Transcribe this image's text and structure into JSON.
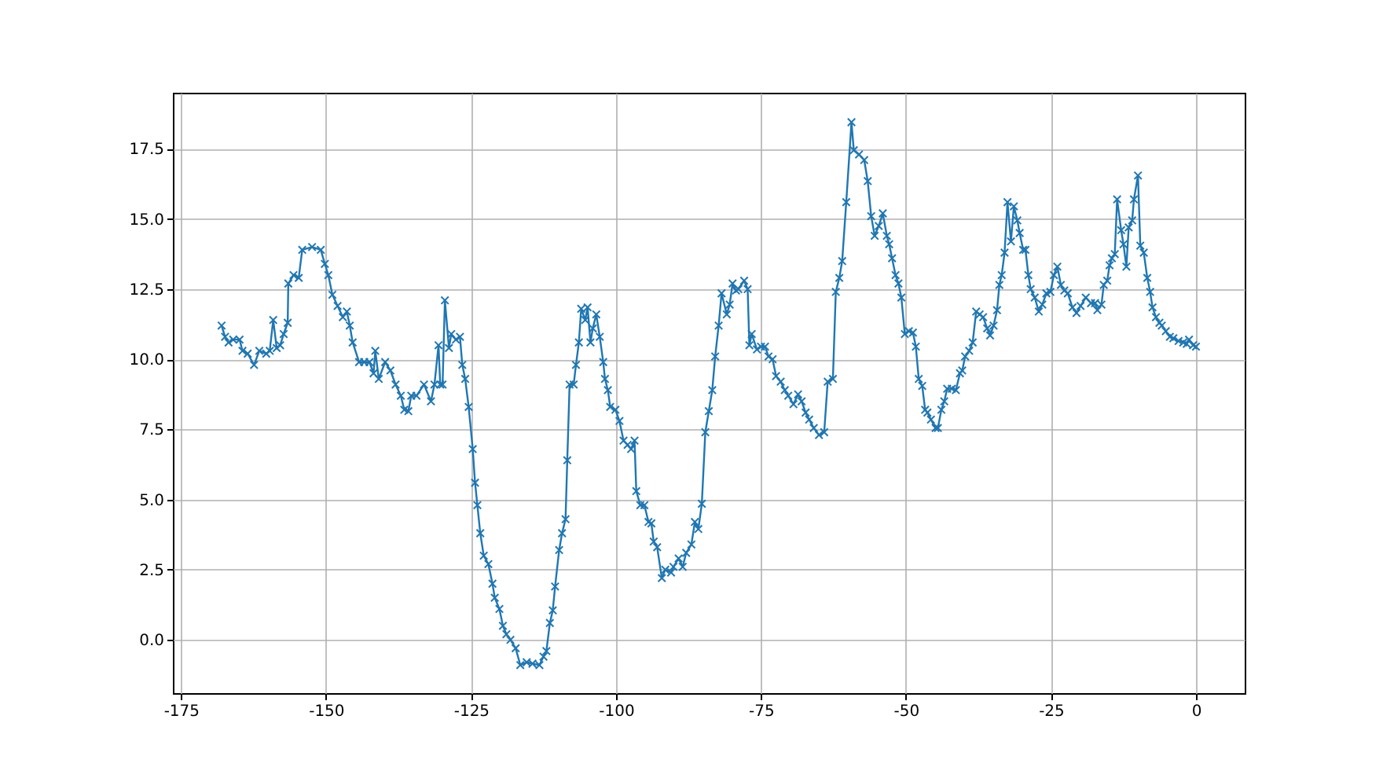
{
  "chart_data": {
    "type": "line",
    "color": "#1f77b4",
    "marker": "cross",
    "line_style": "solid",
    "grid": true,
    "x": [
      -168.0,
      -167.4,
      -166.8,
      -166.0,
      -164.9,
      -164.4,
      -163.5,
      -162.4,
      -161.5,
      -160.3,
      -159.7,
      -159.1,
      -158.5,
      -157.9,
      -157.3,
      -156.6,
      -156.5,
      -155.6,
      -154.7,
      -154.1,
      -152.4,
      -150.9,
      -150.2,
      -149.6,
      -148.9,
      -148.0,
      -147.1,
      -146.4,
      -145.9,
      -145.4,
      -144.3,
      -143.4,
      -142.5,
      -141.8,
      -141.5,
      -140.9,
      -139.8,
      -138.9,
      -138.0,
      -137.1,
      -136.5,
      -135.8,
      -135.3,
      -134.4,
      -133.1,
      -131.9,
      -131.3,
      -130.6,
      -130.3,
      -129.9,
      -129.5,
      -128.8,
      -128.4,
      -127.6,
      -126.9,
      -126.5,
      -126.0,
      -125.4,
      -124.7,
      -124.3,
      -123.9,
      -123.4,
      -122.8,
      -122.0,
      -121.3,
      -120.9,
      -120.1,
      -119.5,
      -118.9,
      -118.2,
      -117.3,
      -116.5,
      -115.4,
      -114.4,
      -113.2,
      -112.5,
      -112.0,
      -111.4,
      -110.9,
      -110.5,
      -109.8,
      -109.3,
      -108.7,
      -108.4,
      -108.0,
      -107.3,
      -106.9,
      -106.4,
      -106.0,
      -105.3,
      -104.9,
      -104.4,
      -104.0,
      -103.4,
      -102.8,
      -102.2,
      -101.9,
      -101.4,
      -101.0,
      -100.1,
      -99.4,
      -98.7,
      -98.0,
      -97.4,
      -96.8,
      -96.5,
      -95.8,
      -95.1,
      -94.4,
      -93.9,
      -93.5,
      -92.9,
      -92.1,
      -91.5,
      -90.5,
      -90.1,
      -89.2,
      -88.5,
      -87.9,
      -87.0,
      -86.4,
      -85.8,
      -85.2,
      -84.6,
      -84.0,
      -83.4,
      -82.9,
      -82.3,
      -81.8,
      -80.9,
      -80.4,
      -79.9,
      -79.3,
      -78.9,
      -77.9,
      -77.3,
      -77.0,
      -76.6,
      -75.7,
      -75.0,
      -74.3,
      -73.7,
      -73.0,
      -72.4,
      -71.6,
      -70.9,
      -70.3,
      -69.4,
      -68.6,
      -68.0,
      -67.3,
      -66.7,
      -65.9,
      -65.0,
      -64.1,
      -63.5,
      -62.6,
      -62.1,
      -61.5,
      -61.0,
      -60.3,
      -59.4,
      -59.0,
      -58.1,
      -57.2,
      -56.6,
      -56.0,
      -55.4,
      -54.7,
      -54.0,
      -53.3,
      -52.9,
      -52.4,
      -51.8,
      -51.3,
      -50.8,
      -50.2,
      -49.5,
      -48.8,
      -48.3,
      -47.8,
      -47.2,
      -46.7,
      -46.3,
      -45.7,
      -44.9,
      -44.5,
      -43.9,
      -43.4,
      -42.9,
      -42.1,
      -41.4,
      -40.7,
      -40.3,
      -39.8,
      -39.1,
      -38.5,
      -37.9,
      -37.3,
      -36.7,
      -36.0,
      -35.5,
      -34.9,
      -34.3,
      -33.9,
      -33.5,
      -33.0,
      -32.5,
      -31.9,
      -31.4,
      -30.8,
      -30.4,
      -29.8,
      -29.4,
      -28.9,
      -28.5,
      -27.8,
      -27.1,
      -26.5,
      -25.8,
      -25.1,
      -24.5,
      -23.9,
      -23.3,
      -22.7,
      -22.1,
      -21.3,
      -20.6,
      -19.9,
      -19.0,
      -18.1,
      -17.4,
      -17.0,
      -16.3,
      -15.9,
      -15.3,
      -14.9,
      -14.5,
      -14.0,
      -13.6,
      -12.9,
      -12.5,
      -12.0,
      -11.6,
      -11.0,
      -10.7,
      -10.0,
      -9.6,
      -9.0,
      -8.4,
      -7.9,
      -7.5,
      -6.9,
      -6.3,
      -5.9,
      -5.2,
      -4.5,
      -3.9,
      -3.0,
      -2.2,
      -1.6,
      -1.2,
      -0.5,
      0.0
    ],
    "values": [
      11.2,
      10.8,
      10.6,
      10.7,
      10.7,
      10.3,
      10.2,
      9.8,
      10.3,
      10.2,
      10.3,
      11.4,
      10.4,
      10.5,
      10.9,
      11.3,
      12.7,
      13.0,
      12.9,
      13.9,
      14.0,
      13.9,
      13.4,
      13.0,
      12.3,
      11.9,
      11.5,
      11.7,
      11.2,
      10.6,
      9.9,
      9.9,
      9.9,
      9.5,
      10.3,
      9.3,
      9.9,
      9.6,
      9.1,
      8.7,
      8.2,
      8.15,
      8.7,
      8.7,
      9.1,
      8.5,
      9.1,
      10.5,
      9.1,
      9.1,
      12.1,
      10.4,
      10.9,
      10.7,
      10.8,
      9.8,
      9.3,
      8.3,
      6.8,
      5.6,
      4.8,
      3.8,
      3.0,
      2.7,
      2.0,
      1.5,
      1.1,
      0.5,
      0.2,
      0.0,
      -0.3,
      -0.9,
      -0.8,
      -0.85,
      -0.9,
      -0.6,
      -0.4,
      0.6,
      1.05,
      1.9,
      3.2,
      3.8,
      4.3,
      6.4,
      9.1,
      9.1,
      9.8,
      10.6,
      11.8,
      11.4,
      11.85,
      10.6,
      11.1,
      11.6,
      10.8,
      9.9,
      9.3,
      8.9,
      8.3,
      8.2,
      7.8,
      7.1,
      6.95,
      6.8,
      7.1,
      5.3,
      4.8,
      4.8,
      4.2,
      4.15,
      3.5,
      3.3,
      2.2,
      2.5,
      2.4,
      2.6,
      2.9,
      2.6,
      3.1,
      3.4,
      4.2,
      3.95,
      4.85,
      7.4,
      8.15,
      8.9,
      10.1,
      11.2,
      12.35,
      11.6,
      11.95,
      12.7,
      12.45,
      12.5,
      12.8,
      12.5,
      10.5,
      10.9,
      10.35,
      10.45,
      10.45,
      10.1,
      10.0,
      9.4,
      9.2,
      8.9,
      8.7,
      8.4,
      8.75,
      8.5,
      8.1,
      7.85,
      7.55,
      7.3,
      7.4,
      9.2,
      9.3,
      12.4,
      12.9,
      13.5,
      15.6,
      18.45,
      17.45,
      17.3,
      17.1,
      16.35,
      15.1,
      14.4,
      14.75,
      15.2,
      14.4,
      14.1,
      13.6,
      13.0,
      12.7,
      12.2,
      10.9,
      11.0,
      10.95,
      10.45,
      9.3,
      9.05,
      8.2,
      8.1,
      7.85,
      7.55,
      7.55,
      8.2,
      8.5,
      8.95,
      8.95,
      8.9,
      9.5,
      9.6,
      10.1,
      10.3,
      10.6,
      11.7,
      11.6,
      11.5,
      11.1,
      10.85,
      11.2,
      11.75,
      12.65,
      13.0,
      13.8,
      15.6,
      14.2,
      15.45,
      14.95,
      14.5,
      13.9,
      13.9,
      13.0,
      12.5,
      12.2,
      11.7,
      11.95,
      12.35,
      12.4,
      13.0,
      13.3,
      12.65,
      12.45,
      12.35,
      11.85,
      11.65,
      11.9,
      12.2,
      12.0,
      12.0,
      11.75,
      11.95,
      12.65,
      12.8,
      13.35,
      13.6,
      13.75,
      15.7,
      14.6,
      14.1,
      13.3,
      14.7,
      14.95,
      15.7,
      16.55,
      14.05,
      13.8,
      12.9,
      12.4,
      11.85,
      11.5,
      11.3,
      11.2,
      11.0,
      10.8,
      10.75,
      10.65,
      10.6,
      10.55,
      10.7,
      10.5,
      10.45
    ],
    "xlim": [
      -176.4,
      8.4
    ],
    "xticks": [
      -175,
      -150,
      -125,
      -100,
      -75,
      -50,
      -25,
      0
    ],
    "ylim": [
      -1.9,
      19.5
    ],
    "yticks": [
      {
        "value": 0,
        "label": "0.0"
      },
      {
        "value": 2.5,
        "label": "2.5"
      },
      {
        "value": 5,
        "label": "5.0"
      },
      {
        "value": 7.5,
        "label": "7.5"
      },
      {
        "value": 10,
        "label": "10.0"
      },
      {
        "value": 12.5,
        "label": "12.5"
      },
      {
        "value": 15,
        "label": "15.0"
      },
      {
        "value": 17.5,
        "label": "17.5"
      }
    ]
  }
}
